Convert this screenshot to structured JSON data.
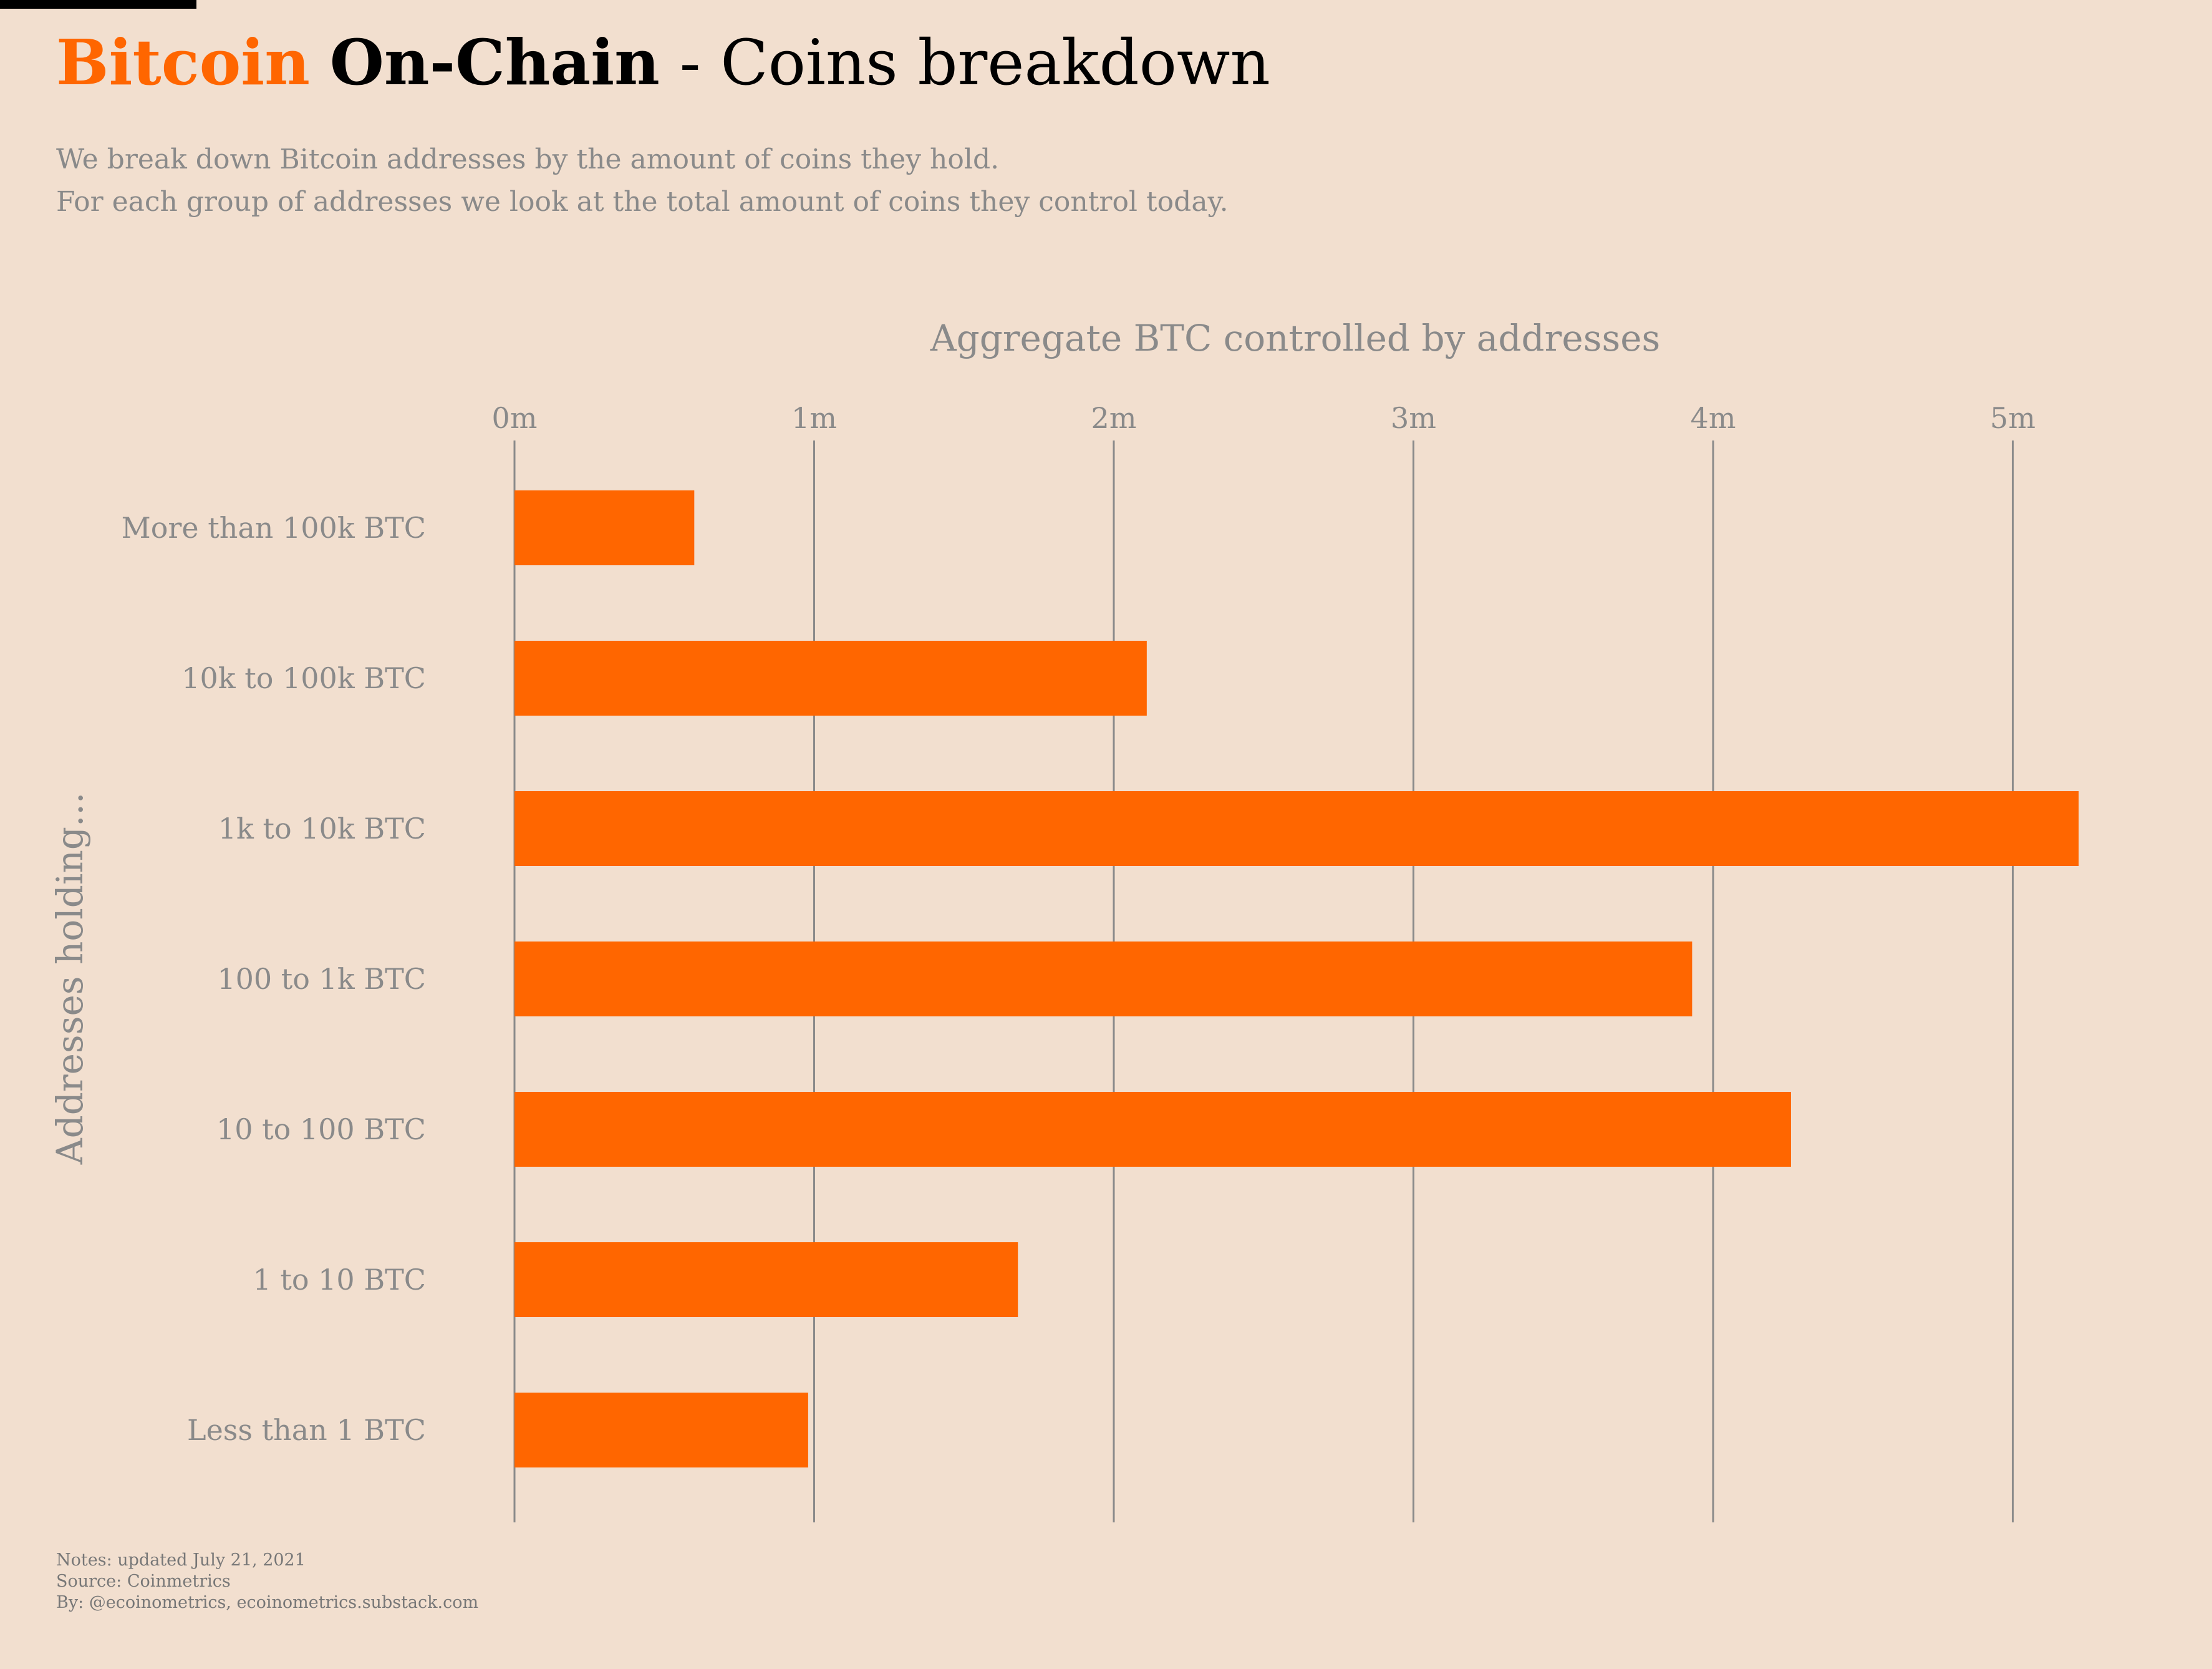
{
  "header": {
    "title_brand": "Bitcoin",
    "title_bold": "On-Chain",
    "title_rest": "- Coins breakdown",
    "subtitle_lines": [
      "We break down Bitcoin addresses by the amount of coins they hold.",
      "For each group of addresses we look at the total amount of coins they control today."
    ]
  },
  "footer": {
    "notes": "Notes: updated July 21, 2021",
    "source": "Source: Coinmetrics",
    "by": "By: @ecoinometrics, ecoinometrics.substack.com"
  },
  "colors": {
    "background": "#f2dfcf",
    "bar": "#ff6600",
    "brand": "#ff6600",
    "grid": "#8a8a8a",
    "text_muted": "#8a8a8a"
  },
  "chart_data": {
    "type": "bar",
    "orientation": "horizontal",
    "xlabel": "Aggregate BTC controlled by addresses",
    "ylabel": "Addresses holding...",
    "xlim": [
      0,
      5000000
    ],
    "xticks": [
      {
        "value": 0,
        "label": "0m"
      },
      {
        "value": 1000000,
        "label": "1m"
      },
      {
        "value": 2000000,
        "label": "2m"
      },
      {
        "value": 3000000,
        "label": "3m"
      },
      {
        "value": 4000000,
        "label": "4m"
      },
      {
        "value": 5000000,
        "label": "5m"
      }
    ],
    "x_axis_position": "top",
    "grid": "vertical",
    "categories": [
      "More than 100k BTC",
      "10k to 100k BTC",
      "1k to 10k BTC",
      "100 to 1k BTC",
      "10 to 100 BTC",
      "1 to 10 BTC",
      "Less than 1 BTC"
    ],
    "values": [
      600000,
      2110000,
      5220000,
      3930000,
      4260000,
      1680000,
      980000
    ]
  }
}
